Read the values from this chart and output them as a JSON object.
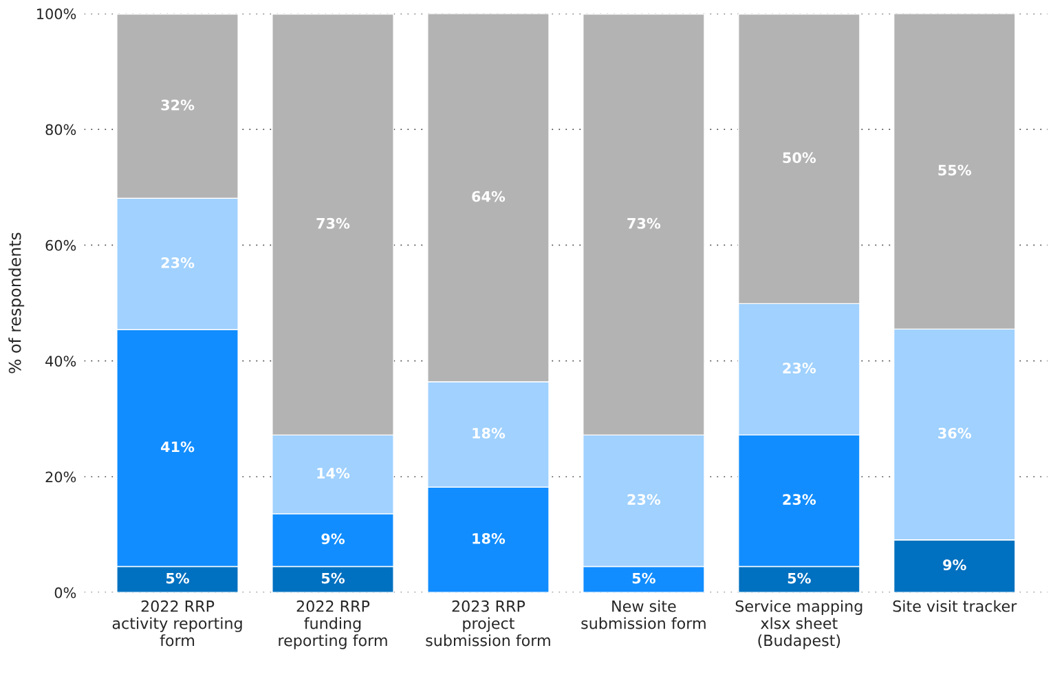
{
  "chart_data": {
    "type": "bar",
    "stacked": true,
    "ylabel": "% of respondents",
    "categories": [
      "2022 RRP\nactivity reporting\nform",
      "2022 RRP\nfunding\nreporting form",
      "2023 RRP\nproject\nsubmission form",
      "New site\nsubmission form",
      "Service mapping\nxlsx sheet\n(Budapest)",
      "Site visit tracker"
    ],
    "series": [
      {
        "color": "#0070c0",
        "values": [
          4.5,
          4.5,
          null,
          null,
          4.5,
          9.1
        ],
        "value_labels": [
          "5%",
          "5%",
          null,
          null,
          "5%",
          "9%"
        ]
      },
      {
        "color": "#118dff",
        "values": [
          40.9,
          9.1,
          18.2,
          4.5,
          22.7,
          null
        ],
        "value_labels": [
          "41%",
          "9%",
          "18%",
          "5%",
          "23%",
          null
        ]
      },
      {
        "color": "#a0d1ff",
        "values": [
          22.7,
          13.6,
          18.2,
          22.7,
          22.7,
          36.4
        ],
        "value_labels": [
          "23%",
          "14%",
          "18%",
          "23%",
          "23%",
          "36%"
        ]
      },
      {
        "color": "#b3b3b3",
        "values": [
          31.8,
          72.7,
          63.6,
          72.7,
          50.0,
          54.5
        ],
        "value_labels": [
          "32%",
          "73%",
          "64%",
          "73%",
          "50%",
          "55%"
        ]
      }
    ],
    "ylim": [
      0,
      100
    ],
    "yticks": [
      {
        "value": 0,
        "label": "0%"
      },
      {
        "value": 20,
        "label": "20%"
      },
      {
        "value": 40,
        "label": "40%"
      },
      {
        "value": 60,
        "label": "60%"
      },
      {
        "value": 80,
        "label": "80%"
      },
      {
        "value": 100,
        "label": "100%"
      }
    ],
    "grid": "y",
    "legend": false
  }
}
